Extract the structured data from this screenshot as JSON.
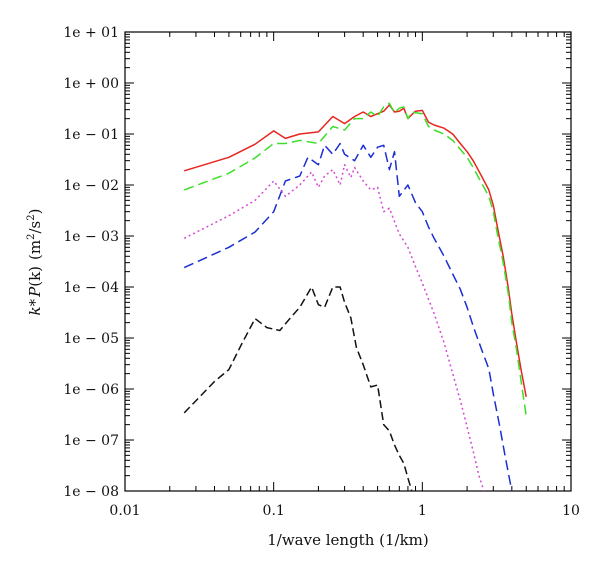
{
  "chart_data": {
    "type": "line",
    "title": "",
    "xlabel": "1/wave length (1/km)",
    "ylabel_parts": {
      "k": "k",
      "star": "*",
      "p": "P",
      "paren": "(k)",
      "units_open": "(m",
      "units_sup1": "2",
      "units_mid": "/s",
      "units_sup2": "2",
      "units_close": ")"
    },
    "x_scale": "log",
    "y_scale": "log",
    "xlim": [
      0.01,
      10
    ],
    "ylim": [
      1e-08,
      10
    ],
    "grid": false,
    "legend": "none",
    "x_ticks": [
      {
        "value": 0.01,
        "label": "0.01"
      },
      {
        "value": 0.1,
        "label": "0.1"
      },
      {
        "value": 1,
        "label": "1"
      },
      {
        "value": 10,
        "label": "10"
      }
    ],
    "y_ticks": [
      {
        "value": 10,
        "label": "1e + 01"
      },
      {
        "value": 1,
        "label": "1e + 00"
      },
      {
        "value": 0.1,
        "label": "1e − 01"
      },
      {
        "value": 0.01,
        "label": "1e − 02"
      },
      {
        "value": 0.001,
        "label": "1e − 03"
      },
      {
        "value": 0.0001,
        "label": "1e − 04"
      },
      {
        "value": 1e-05,
        "label": "1e − 05"
      },
      {
        "value": 1e-06,
        "label": "1e − 06"
      },
      {
        "value": 1e-07,
        "label": "1e − 07"
      },
      {
        "value": 1e-08,
        "label": "1e − 08"
      }
    ],
    "series": [
      {
        "color": "#e8251e",
        "dash": "solid",
        "x": [
          0.025,
          0.05,
          0.075,
          0.1,
          0.12,
          0.15,
          0.2,
          0.25,
          0.3,
          0.35,
          0.4,
          0.45,
          0.5,
          0.55,
          0.6,
          0.65,
          0.7,
          0.75,
          0.8,
          0.85,
          0.9,
          1.0,
          1.1,
          1.2,
          1.4,
          1.6,
          1.8,
          2.0,
          2.2,
          2.5,
          2.8,
          3.0,
          3.2,
          3.5,
          3.8,
          4.0,
          4.3,
          4.6,
          5.0
        ],
        "y": [
          0.019,
          0.035,
          0.063,
          0.115,
          0.082,
          0.1,
          0.11,
          0.22,
          0.16,
          0.22,
          0.27,
          0.22,
          0.25,
          0.28,
          0.37,
          0.27,
          0.28,
          0.32,
          0.2,
          0.24,
          0.28,
          0.29,
          0.17,
          0.15,
          0.13,
          0.1,
          0.065,
          0.045,
          0.03,
          0.015,
          0.008,
          0.004,
          0.0015,
          0.0004,
          9e-05,
          3e-05,
          8e-06,
          2.5e-06,
          7e-07
        ]
      },
      {
        "color": "#3cde2a",
        "dash": "10,5",
        "x": [
          0.025,
          0.05,
          0.075,
          0.1,
          0.12,
          0.15,
          0.2,
          0.25,
          0.3,
          0.35,
          0.4,
          0.45,
          0.5,
          0.55,
          0.6,
          0.65,
          0.7,
          0.75,
          0.8,
          0.85,
          0.9,
          1.0,
          1.1,
          1.2,
          1.4,
          1.6,
          1.8,
          2.0,
          2.2,
          2.5,
          2.8,
          3.0,
          3.2,
          3.5,
          3.8,
          4.0,
          4.3,
          4.6,
          5.0
        ],
        "y": [
          0.008,
          0.017,
          0.034,
          0.065,
          0.065,
          0.075,
          0.065,
          0.14,
          0.12,
          0.2,
          0.2,
          0.27,
          0.22,
          0.34,
          0.4,
          0.26,
          0.32,
          0.34,
          0.2,
          0.27,
          0.26,
          0.25,
          0.14,
          0.12,
          0.1,
          0.075,
          0.05,
          0.035,
          0.022,
          0.011,
          0.006,
          0.003,
          0.0011,
          0.0003,
          7e-05,
          2e-05,
          6e-06,
          1.5e-06,
          3e-07
        ]
      },
      {
        "color": "#1b2fd0",
        "dash": "10,5",
        "x": [
          0.025,
          0.05,
          0.075,
          0.1,
          0.12,
          0.15,
          0.17,
          0.2,
          0.22,
          0.25,
          0.28,
          0.3,
          0.35,
          0.4,
          0.45,
          0.5,
          0.55,
          0.6,
          0.65,
          0.7,
          0.8,
          0.9,
          1.0,
          1.1,
          1.2,
          1.4,
          1.6,
          1.8,
          2.0,
          2.2,
          2.5,
          2.8,
          3.0,
          3.3,
          3.6,
          4.0
        ],
        "y": [
          0.00024,
          0.0006,
          0.0012,
          0.003,
          0.012,
          0.015,
          0.035,
          0.025,
          0.06,
          0.04,
          0.065,
          0.04,
          0.03,
          0.06,
          0.035,
          0.055,
          0.06,
          0.02,
          0.045,
          0.006,
          0.01,
          0.0045,
          0.003,
          0.0015,
          0.0009,
          0.0004,
          0.00018,
          9e-05,
          4e-05,
          1.7e-05,
          6e-06,
          2.5e-06,
          8e-07,
          2e-07,
          5e-08,
          1e-08
        ]
      },
      {
        "color": "#d24bd2",
        "dash": "2,3",
        "x": [
          0.025,
          0.05,
          0.075,
          0.1,
          0.12,
          0.15,
          0.18,
          0.2,
          0.22,
          0.25,
          0.28,
          0.3,
          0.33,
          0.35,
          0.4,
          0.45,
          0.5,
          0.55,
          0.6,
          0.7,
          0.8,
          0.9,
          1.0,
          1.2,
          1.4,
          1.6,
          1.8,
          2.0,
          2.2,
          2.4,
          2.6
        ],
        "y": [
          0.0009,
          0.0025,
          0.005,
          0.012,
          0.006,
          0.01,
          0.018,
          0.009,
          0.015,
          0.02,
          0.01,
          0.025,
          0.014,
          0.022,
          0.012,
          0.008,
          0.009,
          0.003,
          0.0035,
          0.0011,
          0.0006,
          0.00025,
          0.00012,
          3e-05,
          8e-06,
          2e-06,
          6e-07,
          1.8e-07,
          6e-08,
          2e-08,
          1e-08
        ]
      },
      {
        "color": "#111111",
        "dash": "8,4",
        "x": [
          0.025,
          0.04,
          0.05,
          0.06,
          0.075,
          0.09,
          0.11,
          0.13,
          0.15,
          0.18,
          0.2,
          0.22,
          0.25,
          0.28,
          0.3,
          0.33,
          0.36,
          0.4,
          0.45,
          0.5,
          0.55,
          0.6,
          0.65,
          0.7,
          0.75,
          0.8,
          0.85,
          0.9
        ],
        "y": [
          3.4e-07,
          1.4e-06,
          2.4e-06,
          7e-06,
          2.4e-05,
          1.6e-05,
          1.4e-05,
          2.5e-05,
          4e-05,
          0.0001,
          4.5e-05,
          4e-05,
          0.0001,
          0.0001,
          5e-05,
          2.5e-05,
          6.5e-06,
          3e-06,
          1.1e-06,
          1.2e-06,
          2e-07,
          1.5e-07,
          8e-08,
          5e-08,
          3.5e-08,
          1.8e-08,
          1e-08,
          8e-09
        ]
      }
    ]
  }
}
